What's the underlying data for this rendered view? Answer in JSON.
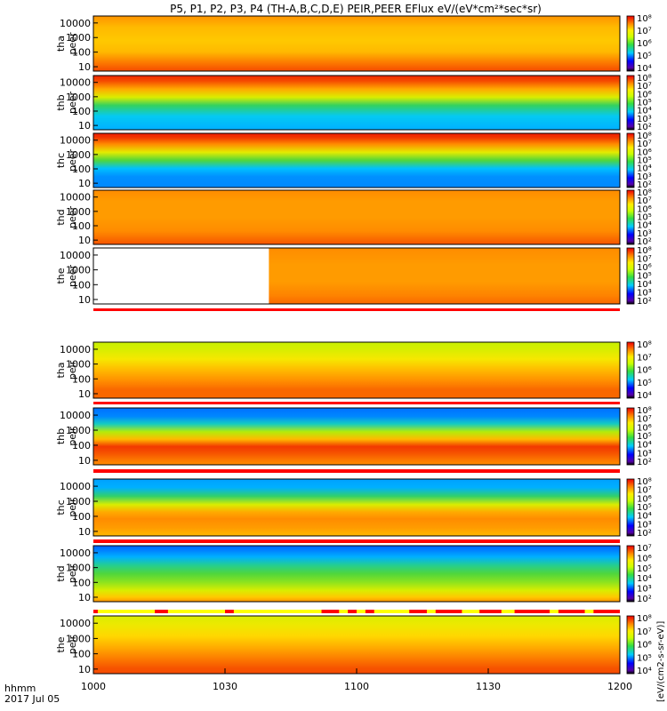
{
  "title": "P5, P1, P2, P3, P4 (TH-A,B,C,D,E) PEIR,PEER EFlux eV/(eV*cm²*sec*sr)",
  "colorbar_label": "[eV/(cm2-s-sr-eV)]",
  "x_axis": {
    "corner_label_1": "hhmm",
    "corner_label_2": "2017 Jul 05",
    "tick_labels": [
      "1000",
      "1030",
      "1100",
      "1130",
      "1200"
    ]
  },
  "colors": {
    "low": "#0000aa",
    "mid": "#33cc33",
    "high": "#ff2200",
    "flag_red": "#ff0000",
    "flag_yellow": "#ffff00"
  },
  "chart_data": {
    "type": "heatmap",
    "xlim": [
      "10:00",
      "12:00"
    ],
    "y_scale": "log",
    "panels": [
      {
        "id": "tha_peer",
        "ylabel_top": "tha",
        "ylabel_bottom": "peer",
        "y_ticks": [
          "10",
          "100",
          "1000",
          "10000"
        ],
        "cb_ticks": [
          "10⁴",
          "10⁵",
          "10⁶",
          "10⁷",
          "10⁸"
        ],
        "empty_until": null,
        "profile": [
          [
            0,
            0.85
          ],
          [
            0.2,
            0.8
          ],
          [
            0.45,
            0.78
          ],
          [
            0.65,
            0.8
          ],
          [
            0.85,
            0.88
          ],
          [
            1,
            0.93
          ]
        ]
      },
      {
        "id": "thb_peer",
        "ylabel_top": "thb",
        "ylabel_bottom": "peer",
        "y_ticks": [
          "10",
          "100",
          "1000",
          "10000"
        ],
        "cb_ticks": [
          "10²",
          "10³",
          "10⁴",
          "10⁵",
          "10⁶",
          "10⁷",
          "10⁸"
        ],
        "empty_until": null,
        "profile": [
          [
            0,
            0.97
          ],
          [
            0.1,
            0.93
          ],
          [
            0.25,
            0.82
          ],
          [
            0.4,
            0.66
          ],
          [
            0.55,
            0.46
          ],
          [
            0.75,
            0.34
          ],
          [
            1,
            0.3
          ]
        ]
      },
      {
        "id": "thc_peer",
        "ylabel_top": "thc",
        "ylabel_bottom": "peer",
        "y_ticks": [
          "10",
          "100",
          "1000",
          "10000"
        ],
        "cb_ticks": [
          "10²",
          "10³",
          "10⁴",
          "10⁵",
          "10⁶",
          "10⁷",
          "10⁸"
        ],
        "empty_until": null,
        "profile": [
          [
            0,
            0.98
          ],
          [
            0.08,
            0.95
          ],
          [
            0.2,
            0.86
          ],
          [
            0.35,
            0.68
          ],
          [
            0.5,
            0.5
          ],
          [
            0.65,
            0.32
          ],
          [
            0.8,
            0.26
          ],
          [
            1,
            0.25
          ]
        ]
      },
      {
        "id": "thd_peer",
        "ylabel_top": "thd",
        "ylabel_bottom": "peer",
        "y_ticks": [
          "10",
          "100",
          "1000",
          "10000"
        ],
        "cb_ticks": [
          "10²",
          "10³",
          "10⁴",
          "10⁵",
          "10⁶",
          "10⁷",
          "10⁸"
        ],
        "empty_until": null,
        "profile": [
          [
            0,
            0.86
          ],
          [
            0.2,
            0.84
          ],
          [
            0.5,
            0.84
          ],
          [
            0.75,
            0.86
          ],
          [
            0.92,
            0.9
          ],
          [
            1,
            0.92
          ]
        ]
      },
      {
        "id": "the_peer",
        "ylabel_top": "the",
        "ylabel_bottom": "peer",
        "y_ticks": [
          "10",
          "100",
          "1000",
          "10000"
        ],
        "cb_ticks": [
          "10²",
          "10³",
          "10⁴",
          "10⁵",
          "10⁶",
          "10⁷",
          "10⁸"
        ],
        "empty_until": "10:40",
        "profile": [
          [
            0,
            0.86
          ],
          [
            0.3,
            0.84
          ],
          [
            0.6,
            0.84
          ],
          [
            0.85,
            0.87
          ],
          [
            1,
            0.9
          ]
        ]
      },
      {
        "id": "tha_peir",
        "ylabel_top": "tha",
        "ylabel_bottom": "peir",
        "y_ticks": [
          "10",
          "100",
          "1000",
          "10000"
        ],
        "cb_ticks": [
          "10⁴",
          "10⁵",
          "10⁶",
          "10⁷",
          "10⁸"
        ],
        "empty_until": null,
        "profile": [
          [
            0,
            0.62
          ],
          [
            0.12,
            0.65
          ],
          [
            0.3,
            0.72
          ],
          [
            0.5,
            0.8
          ],
          [
            0.7,
            0.86
          ],
          [
            0.85,
            0.9
          ],
          [
            1,
            0.9
          ]
        ]
      },
      {
        "id": "thb_peir",
        "ylabel_top": "thb",
        "ylabel_bottom": "peir",
        "y_ticks": [
          "10",
          "100",
          "1000",
          "10000"
        ],
        "cb_ticks": [
          "10²",
          "10³",
          "10⁴",
          "10⁵",
          "10⁶",
          "10⁷",
          "10⁸"
        ],
        "empty_until": null,
        "profile": [
          [
            0,
            0.22
          ],
          [
            0.15,
            0.25
          ],
          [
            0.28,
            0.38
          ],
          [
            0.42,
            0.6
          ],
          [
            0.55,
            0.8
          ],
          [
            0.68,
            0.95
          ],
          [
            0.8,
            0.92
          ],
          [
            0.92,
            0.88
          ],
          [
            1,
            0.86
          ]
        ]
      },
      {
        "id": "thc_peir",
        "ylabel_top": "thc",
        "ylabel_bottom": "peir",
        "y_ticks": [
          "10",
          "100",
          "1000",
          "10000"
        ],
        "cb_ticks": [
          "10²",
          "10³",
          "10⁴",
          "10⁵",
          "10⁶",
          "10⁷",
          "10⁸"
        ],
        "empty_until": null,
        "profile": [
          [
            0,
            0.28
          ],
          [
            0.15,
            0.3
          ],
          [
            0.3,
            0.45
          ],
          [
            0.45,
            0.66
          ],
          [
            0.58,
            0.82
          ],
          [
            0.7,
            0.86
          ],
          [
            0.85,
            0.84
          ],
          [
            1,
            0.8
          ]
        ]
      },
      {
        "id": "thd_peir",
        "ylabel_top": "thd",
        "ylabel_bottom": "peir",
        "y_ticks": [
          "10",
          "100",
          "1000",
          "10000"
        ],
        "cb_ticks": [
          "10²",
          "10³",
          "10⁴",
          "10⁵",
          "10⁶",
          "10⁷"
        ],
        "empty_until": null,
        "profile": [
          [
            0,
            0.2
          ],
          [
            0.2,
            0.3
          ],
          [
            0.35,
            0.42
          ],
          [
            0.5,
            0.5
          ],
          [
            0.65,
            0.56
          ],
          [
            0.8,
            0.66
          ],
          [
            0.92,
            0.78
          ],
          [
            1,
            0.85
          ]
        ]
      },
      {
        "id": "the_peir",
        "ylabel_top": "the",
        "ylabel_bottom": "peir",
        "y_ticks": [
          "10",
          "100",
          "1000",
          "10000"
        ],
        "cb_ticks": [
          "10⁴",
          "10⁵",
          "10⁶",
          "10⁷",
          "10⁸"
        ],
        "empty_until": null,
        "profile": [
          [
            0,
            0.66
          ],
          [
            0.15,
            0.7
          ],
          [
            0.35,
            0.76
          ],
          [
            0.55,
            0.82
          ],
          [
            0.75,
            0.88
          ],
          [
            0.9,
            0.92
          ],
          [
            1,
            0.93
          ]
        ]
      }
    ],
    "mode_flag_red_intervals": [
      [
        "10:00",
        "10:01"
      ],
      [
        "10:14",
        "10:17"
      ],
      [
        "10:30",
        "10:32"
      ],
      [
        "10:52",
        "10:56"
      ],
      [
        "10:58",
        "11:00"
      ],
      [
        "11:02",
        "11:04"
      ],
      [
        "11:12",
        "11:16"
      ],
      [
        "11:18",
        "11:24"
      ],
      [
        "11:28",
        "11:33"
      ],
      [
        "11:36",
        "11:44"
      ],
      [
        "11:46",
        "11:52"
      ],
      [
        "11:54",
        "12:00"
      ]
    ]
  }
}
